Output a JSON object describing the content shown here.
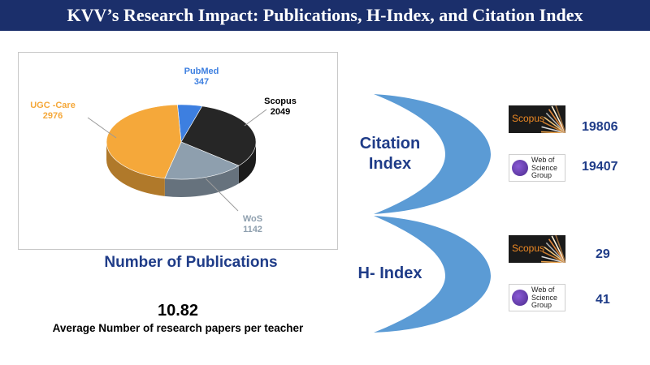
{
  "title": "KVV’s Research Impact: Publications, H-Index, and Citation Index",
  "chart_data": {
    "type": "pie",
    "categories": [
      "PubMed",
      "Scopus",
      "WoS",
      "UGC -Care"
    ],
    "values": [
      347,
      2049,
      1142,
      2976
    ],
    "colors": [
      "#3d7fe0",
      "#262626",
      "#8e9fae",
      "#f5a83a"
    ],
    "label_colors": [
      "#3d7fe0",
      "#000000",
      "#8e9fae",
      "#f5a83a"
    ]
  },
  "publications_label": "Number of Publications",
  "average": {
    "value": "10.82",
    "label": "Average Number of research papers per teacher"
  },
  "citation_index": {
    "label_line1": "Citation",
    "label_line2": "Index",
    "rows": [
      {
        "logo": "Scopus",
        "value": "19806"
      },
      {
        "logo": "Web of Science Group",
        "logo_lines": [
          "Web of",
          "Science",
          "Group"
        ],
        "value": "19407"
      }
    ]
  },
  "h_index": {
    "label": "H- Index",
    "rows": [
      {
        "logo": "Scopus",
        "value": "29"
      },
      {
        "logo": "Web of Science Group",
        "logo_lines": [
          "Web of",
          "Science",
          "Group"
        ],
        "value": "41"
      }
    ]
  },
  "arc_color": "#5b9bd5"
}
